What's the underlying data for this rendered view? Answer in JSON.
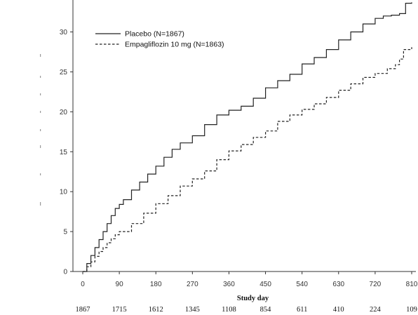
{
  "chart_data": {
    "type": "line",
    "xlabel": "Study day",
    "ylabel": "",
    "xlim": [
      0,
      810
    ],
    "ylim": [
      0,
      34
    ],
    "x_ticks": [
      0,
      90,
      180,
      270,
      360,
      450,
      540,
      630,
      720,
      810
    ],
    "y_ticks": [
      0,
      5,
      10,
      15,
      20,
      25,
      30
    ],
    "legend_position": "top-left",
    "grid": false,
    "series": [
      {
        "name": "Placebo (N=1867)",
        "line_style": "solid",
        "color": "#222222",
        "x": [
          0,
          10,
          20,
          30,
          40,
          50,
          60,
          70,
          80,
          90,
          100,
          120,
          140,
          160,
          180,
          200,
          220,
          240,
          270,
          300,
          330,
          360,
          390,
          420,
          450,
          480,
          510,
          540,
          570,
          600,
          630,
          660,
          690,
          720,
          740,
          760,
          780,
          795,
          810
        ],
        "y": [
          0,
          1.0,
          2.0,
          3.0,
          4.0,
          5.0,
          6.0,
          7.0,
          7.9,
          8.4,
          9.0,
          10.2,
          11.2,
          12.2,
          13.2,
          14.3,
          15.3,
          16.1,
          17.0,
          18.4,
          19.6,
          20.2,
          20.7,
          21.7,
          23.0,
          23.9,
          24.7,
          26.0,
          26.8,
          27.8,
          29.0,
          30.0,
          31.0,
          31.7,
          32.0,
          32.1,
          32.3,
          33.6,
          33.7
        ]
      },
      {
        "name": "Empagliflozin 10 mg (N=1863)",
        "line_style": "dashed",
        "color": "#222222",
        "x": [
          0,
          10,
          20,
          30,
          40,
          50,
          60,
          70,
          80,
          90,
          120,
          150,
          180,
          210,
          240,
          270,
          300,
          330,
          360,
          390,
          420,
          450,
          480,
          510,
          540,
          570,
          600,
          630,
          660,
          690,
          720,
          750,
          770,
          780,
          790,
          810
        ],
        "y": [
          0,
          0.6,
          1.2,
          1.9,
          2.5,
          3.0,
          3.6,
          4.1,
          4.6,
          5.0,
          6.0,
          7.3,
          8.5,
          9.5,
          10.7,
          11.6,
          12.6,
          14.0,
          15.1,
          15.9,
          16.8,
          17.6,
          18.8,
          19.6,
          20.3,
          21.0,
          21.8,
          22.7,
          23.5,
          24.3,
          24.8,
          25.4,
          25.9,
          26.6,
          27.8,
          28.1
        ]
      }
    ],
    "risk_table": {
      "rows": [
        {
          "values": [
            "1867",
            "1715",
            "1612",
            "1345",
            "1108",
            "854",
            "611",
            "410",
            "224",
            "109"
          ]
        }
      ]
    }
  }
}
